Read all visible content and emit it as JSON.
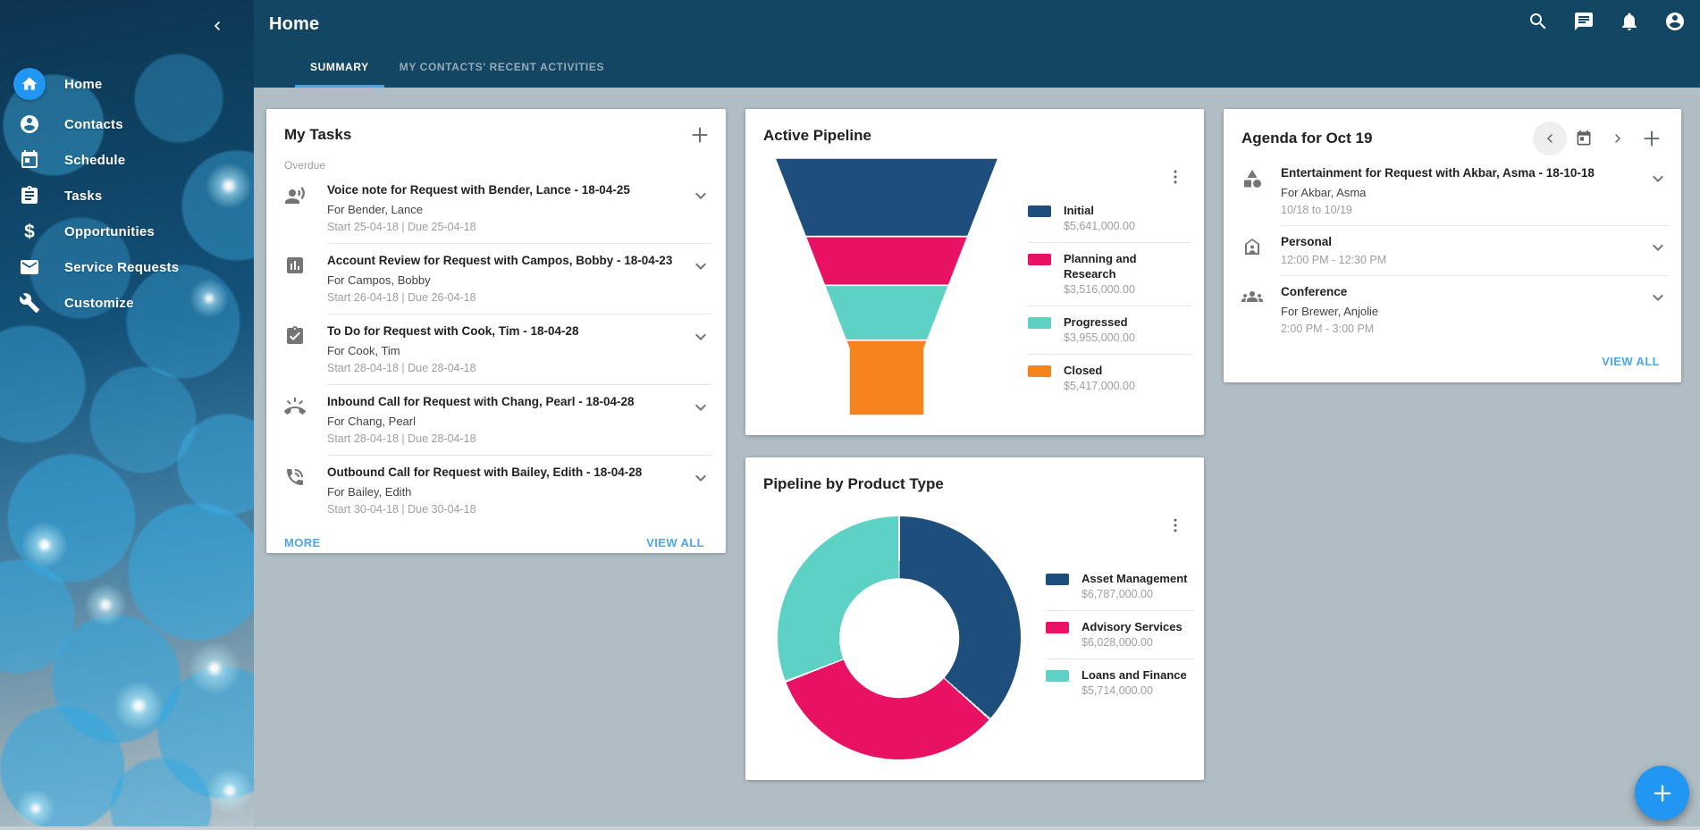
{
  "colors": {
    "header_bg": "#134663",
    "page_bg": "#b0bdc5",
    "accent_blue": "#2196f3",
    "link_blue": "#4da6ea",
    "tab_underline": "#41a7e8"
  },
  "sidebar": {
    "collapse_icon": "chevron-left-icon",
    "items": [
      {
        "label": "Home",
        "icon": "home-icon",
        "active": true
      },
      {
        "label": "Contacts",
        "icon": "contacts-icon",
        "active": false
      },
      {
        "label": "Schedule",
        "icon": "calendar-icon",
        "active": false
      },
      {
        "label": "Tasks",
        "icon": "tasks-icon",
        "active": false
      },
      {
        "label": "Opportunities",
        "icon": "dollar-icon",
        "active": false
      },
      {
        "label": "Service Requests",
        "icon": "mail-icon",
        "active": false
      },
      {
        "label": "Customize",
        "icon": "wrench-icon",
        "active": false
      }
    ]
  },
  "header": {
    "title": "Home",
    "tabs": [
      {
        "label": "SUMMARY",
        "active": true
      },
      {
        "label": "MY CONTACTS' RECENT ACTIVITIES",
        "active": false
      }
    ],
    "actions": [
      {
        "icon": "search-icon"
      },
      {
        "icon": "chat-icon"
      },
      {
        "icon": "notifications-icon"
      },
      {
        "icon": "account-icon"
      }
    ]
  },
  "my_tasks": {
    "title": "My Tasks",
    "add_icon": "plus-icon",
    "section_label": "Overdue",
    "tasks": [
      {
        "icon": "voice-note-icon",
        "title": "Voice note for Request with Bender, Lance - 18-04-25",
        "for": "For Bender, Lance",
        "dates": "Start 25-04-18 | Due 25-04-18"
      },
      {
        "icon": "account-review-icon",
        "title": "Account Review for Request with Campos, Bobby - 18-04-23",
        "for": "For Campos, Bobby",
        "dates": "Start 26-04-18 | Due 26-04-18"
      },
      {
        "icon": "todo-icon",
        "title": "To Do for Request with Cook, Tim - 18-04-28",
        "for": "For Cook, Tim",
        "dates": "Start 28-04-18 | Due 28-04-18"
      },
      {
        "icon": "inbound-call-icon",
        "title": "Inbound Call for Request with Chang, Pearl - 18-04-28",
        "for": "For Chang, Pearl",
        "dates": "Start 28-04-18 | Due 28-04-18"
      },
      {
        "icon": "outbound-call-icon",
        "title": "Outbound Call for Request with Bailey, Edith - 18-04-28",
        "for": "For Bailey, Edith",
        "dates": "Start 30-04-18 | Due 30-04-18"
      }
    ],
    "more_label": "MORE",
    "view_all_label": "VIEW ALL"
  },
  "active_pipeline": {
    "title": "Active Pipeline",
    "menu_icon": "kebab-menu-icon",
    "chart_data": {
      "type": "funnel",
      "title": "Active Pipeline",
      "stages": [
        "Initial",
        "Planning and Research",
        "Progressed",
        "Closed"
      ],
      "values": [
        5641000,
        3516000,
        3955000,
        5417000
      ],
      "value_labels": [
        "$5,641,000.00",
        "$3,516,000.00",
        "$3,955,000.00",
        "$5,417,000.00"
      ],
      "colors": [
        "#1d4e7c",
        "#e81164",
        "#5ed1c5",
        "#f6831e"
      ],
      "legend_position": "right"
    }
  },
  "agenda": {
    "title": "Agenda for Oct 19",
    "nav_icons": [
      "chevron-left-icon",
      "calendar-icon",
      "chevron-right-icon",
      "plus-icon"
    ],
    "items": [
      {
        "icon": "entertainment-icon",
        "title": "Entertainment for Request with Akbar, Asma - 18-10-18",
        "for": "For Akbar, Asma",
        "time": "10/18 to 10/19"
      },
      {
        "icon": "personal-icon",
        "title": "Personal",
        "for": "",
        "time": "12:00 PM - 12:30 PM"
      },
      {
        "icon": "conference-icon",
        "title": "Conference",
        "for": "For Brewer, Anjolie",
        "time": "2:00 PM - 3:00 PM"
      }
    ],
    "view_all_label": "VIEW ALL"
  },
  "pipeline_by_product": {
    "title": "Pipeline by Product Type",
    "menu_icon": "kebab-menu-icon",
    "chart_data": {
      "type": "donut",
      "title": "Pipeline by Product Type",
      "categories": [
        "Asset Management",
        "Advisory Services",
        "Loans and Finance"
      ],
      "values": [
        6787000,
        6028000,
        5714000
      ],
      "value_labels": [
        "$6,787,000.00",
        "$6,028,000.00",
        "$5,714,000.00"
      ],
      "colors": [
        "#1d4e7c",
        "#e81164",
        "#5ed1c5"
      ],
      "inner_radius_ratio": 0.49,
      "start_angle_deg": 0,
      "direction": "clockwise",
      "legend_position": "right"
    }
  },
  "fab": {
    "icon": "plus-icon"
  }
}
